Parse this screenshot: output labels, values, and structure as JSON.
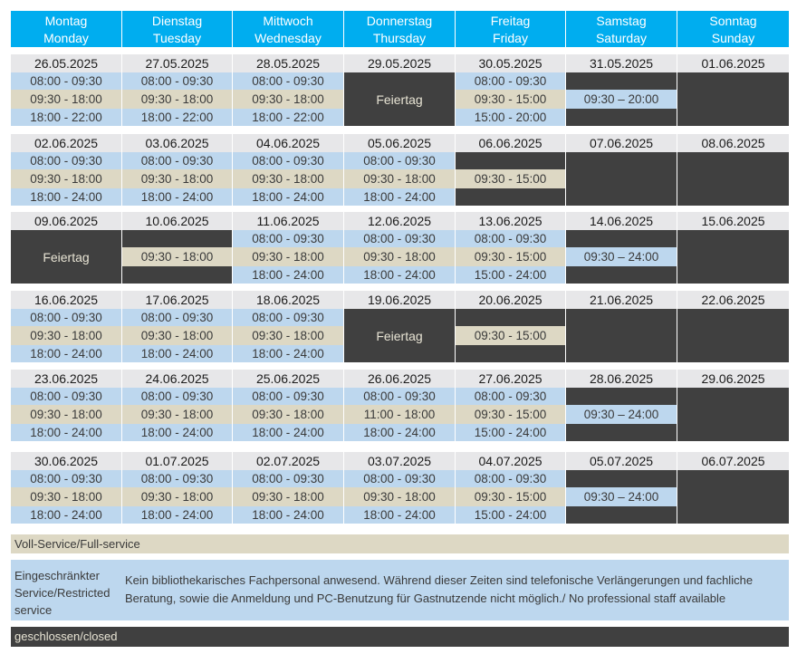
{
  "header": [
    {
      "de": "Montag",
      "en": "Monday"
    },
    {
      "de": "Dienstag",
      "en": "Tuesday"
    },
    {
      "de": "Mittwoch",
      "en": "Wednesday"
    },
    {
      "de": "Donnerstag",
      "en": "Thursday"
    },
    {
      "de": "Freitag",
      "en": "Friday"
    },
    {
      "de": "Samstag",
      "en": "Saturday"
    },
    {
      "de": "Sonntag",
      "en": "Sunday"
    }
  ],
  "weeks": [
    {
      "days": [
        {
          "date": "26.05.2025",
          "type": "weekday",
          "slots": [
            "08:00 - 09:30",
            "09:30 - 18:00",
            "18:00 - 22:00"
          ]
        },
        {
          "date": "27.05.2025",
          "type": "weekday",
          "slots": [
            "08:00 - 09:30",
            "09:30 - 18:00",
            "18:00 - 22:00"
          ]
        },
        {
          "date": "28.05.2025",
          "type": "weekday",
          "slots": [
            "08:00 - 09:30",
            "09:30 - 18:00",
            "18:00 - 22:00"
          ]
        },
        {
          "date": "29.05.2025",
          "type": "holiday",
          "label": "Feiertag"
        },
        {
          "date": "30.05.2025",
          "type": "friday",
          "slots": [
            "08:00 - 09:30",
            "09:30 - 15:00",
            "15:00 - 20:00"
          ]
        },
        {
          "date": "31.05.2025",
          "type": "saturday",
          "slot": "09:30 – 20:00"
        },
        {
          "date": "01.06.2025",
          "type": "closed"
        }
      ]
    },
    {
      "days": [
        {
          "date": "02.06.2025",
          "type": "weekday",
          "slots": [
            "08:00 - 09:30",
            "09:30 - 18:00",
            "18:00 - 24:00"
          ]
        },
        {
          "date": "03.06.2025",
          "type": "weekday",
          "slots": [
            "08:00 - 09:30",
            "09:30 - 18:00",
            "18:00 - 24:00"
          ]
        },
        {
          "date": "04.06.2025",
          "type": "weekday",
          "slots": [
            "08:00 - 09:30",
            "09:30 - 18:00",
            "18:00 - 24:00"
          ]
        },
        {
          "date": "05.06.2025",
          "type": "weekday",
          "slots": [
            "08:00 - 09:30",
            "09:30 - 18:00",
            "18:00 - 24:00"
          ]
        },
        {
          "date": "06.06.2025",
          "type": "fulltime",
          "slot": "09:30 - 15:00"
        },
        {
          "date": "07.06.2025",
          "type": "closed"
        },
        {
          "date": "08.06.2025",
          "type": "closed"
        }
      ]
    },
    {
      "days": [
        {
          "date": "09.06.2025",
          "type": "holiday",
          "label": "Feiertag"
        },
        {
          "date": "10.06.2025",
          "type": "fulltime",
          "slot": "09:30 - 18:00"
        },
        {
          "date": "11.06.2025",
          "type": "weekday",
          "slots": [
            "08:00 - 09:30",
            "09:30 - 18:00",
            "18:00 - 24:00"
          ]
        },
        {
          "date": "12.06.2025",
          "type": "weekday",
          "slots": [
            "08:00 - 09:30",
            "09:30 - 18:00",
            "18:00 - 24:00"
          ]
        },
        {
          "date": "13.06.2025",
          "type": "friday",
          "slots": [
            "08:00 - 09:30",
            "09:30 - 15:00",
            "15:00 - 24:00"
          ]
        },
        {
          "date": "14.06.2025",
          "type": "saturday",
          "slot": "09:30 – 24:00"
        },
        {
          "date": "15.06.2025",
          "type": "closed"
        }
      ]
    },
    {
      "days": [
        {
          "date": "16.06.2025",
          "type": "weekday",
          "slots": [
            "08:00 - 09:30",
            "09:30 - 18:00",
            "18:00 - 24:00"
          ]
        },
        {
          "date": "17.06.2025",
          "type": "weekday",
          "slots": [
            "08:00 - 09:30",
            "09:30 - 18:00",
            "18:00 - 24:00"
          ]
        },
        {
          "date": "18.06.2025",
          "type": "weekday",
          "slots": [
            "08:00 - 09:30",
            "09:30 - 18:00",
            "18:00 - 24:00"
          ]
        },
        {
          "date": "19.06.2025",
          "type": "holiday",
          "label": "Feiertag"
        },
        {
          "date": "20.06.2025",
          "type": "fulltime",
          "slot": "09:30 - 15:00"
        },
        {
          "date": "21.06.2025",
          "type": "closed"
        },
        {
          "date": "22.06.2025",
          "type": "closed"
        }
      ]
    },
    {
      "days": [
        {
          "date": "23.06.2025",
          "type": "weekday",
          "slots": [
            "08:00 - 09:30",
            "09:30 - 18:00",
            "18:00 - 24:00"
          ]
        },
        {
          "date": "24.06.2025",
          "type": "weekday",
          "slots": [
            "08:00 - 09:30",
            "09:30 - 18:00",
            "18:00 - 24:00"
          ]
        },
        {
          "date": "25.06.2025",
          "type": "weekday",
          "slots": [
            "08:00 - 09:30",
            "09:30 - 18:00",
            "18:00 - 24:00"
          ]
        },
        {
          "date": "26.06.2025",
          "type": "weekday",
          "slots": [
            "08:00 - 09:30",
            "11:00 - 18:00",
            "18:00 - 24:00"
          ]
        },
        {
          "date": "27.06.2025",
          "type": "friday",
          "slots": [
            "08:00 - 09:30",
            "09:30 - 15:00",
            "15:00 - 24:00"
          ]
        },
        {
          "date": "28.06.2025",
          "type": "saturday",
          "slot": "09:30 – 24:00"
        },
        {
          "date": "29.06.2025",
          "type": "closed"
        }
      ]
    },
    {
      "days": [
        {
          "date": "30.06.2025",
          "type": "weekday",
          "slots": [
            "08:00 - 09:30",
            "09:30 - 18:00",
            "18:00 - 24:00"
          ]
        },
        {
          "date": "01.07.2025",
          "type": "weekday",
          "slots": [
            "08:00 - 09:30",
            "09:30 - 18:00",
            "18:00 - 24:00"
          ]
        },
        {
          "date": "02.07.2025",
          "type": "weekday",
          "slots": [
            "08:00 - 09:30",
            "09:30 - 18:00",
            "18:00 - 24:00"
          ]
        },
        {
          "date": "03.07.2025",
          "type": "weekday",
          "slots": [
            "08:00 - 09:30",
            "09:30 - 18:00",
            "18:00 - 24:00"
          ]
        },
        {
          "date": "04.07.2025",
          "type": "friday",
          "slots": [
            "08:00 - 09:30",
            "09:30 - 15:00",
            "15:00 - 24:00"
          ]
        },
        {
          "date": "05.07.2025",
          "type": "saturday",
          "slot": "09:30 – 24:00"
        },
        {
          "date": "06.07.2025",
          "type": "closed"
        }
      ]
    }
  ],
  "legend": {
    "full": "Voll-Service/Full-service",
    "restricted_label": "Eingeschränkter Service/Restricted service",
    "restricted_text": "Kein bibliothekarisches Fachpersonal anwesend. Während dieser Zeiten sind telefonische Verlängerungen und fachliche Beratung, sowie die Anmeldung und PC-Benutzung für Gastnutzende nicht möglich./ No professional staff available",
    "closed": "geschlossen/closed"
  },
  "colors": {
    "header": "#00adef",
    "restricted": "#bdd7ee",
    "full": "#ddd8c4",
    "closed": "#404040",
    "date": "#e7e7e9"
  }
}
